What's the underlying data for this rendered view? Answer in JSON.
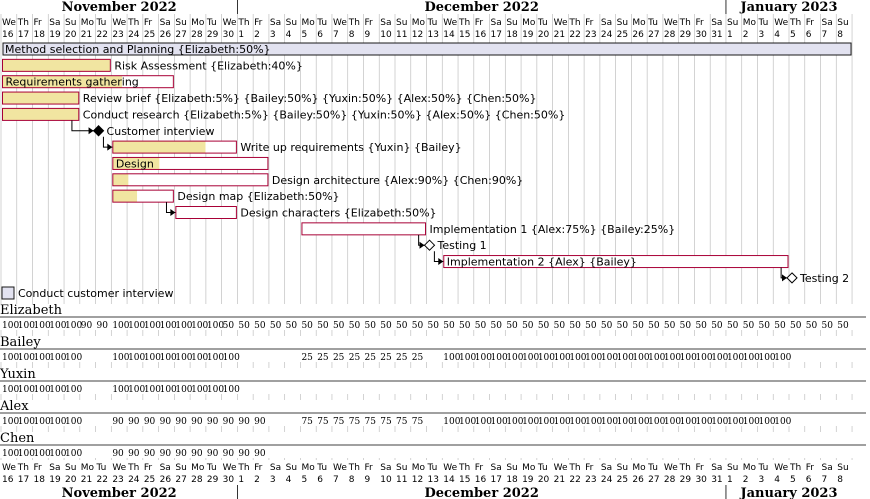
{
  "start_date": "2022-11-16",
  "num_days": 54,
  "colors": {
    "bar_border": "#A80036",
    "bar_fill": "#FFFFFF",
    "progress": "#F1E5A1",
    "group_fill": "#E2E2F0",
    "grid": "#C0C0C0",
    "milestone_done": "#000000"
  },
  "months": [
    {
      "label": "November 2022",
      "start_day": 0,
      "end_day": 14
    },
    {
      "label": "December 2022",
      "start_day": 15,
      "end_day": 45
    },
    {
      "label": "January 2023",
      "start_day": 46,
      "end_day": 53
    }
  ],
  "weekdays": [
    "We",
    "Th",
    "Fr",
    "Sa",
    "Su",
    "Mo",
    "Tu",
    "We",
    "Th",
    "Fr",
    "Sa",
    "Su",
    "Mo",
    "Tu",
    "We",
    "Th",
    "Fr",
    "Sa",
    "Su",
    "Mo",
    "Tu",
    "We",
    "Th",
    "Fr",
    "Sa",
    "Su",
    "Mo",
    "Tu",
    "We",
    "Th",
    "Fr",
    "Sa",
    "Su",
    "Mo",
    "Tu",
    "We",
    "Th",
    "Fr",
    "Sa",
    "Su",
    "Mo",
    "Tu",
    "We",
    "Th",
    "Fr",
    "Sa",
    "Su",
    "Mo",
    "Tu",
    "We",
    "Th",
    "Fr",
    "Sa",
    "Su"
  ],
  "day_numbers": [
    "16",
    "17",
    "18",
    "19",
    "20",
    "21",
    "22",
    "23",
    "24",
    "25",
    "26",
    "27",
    "28",
    "29",
    "30",
    "1",
    "2",
    "3",
    "4",
    "5",
    "6",
    "7",
    "8",
    "9",
    "10",
    "11",
    "12",
    "13",
    "14",
    "15",
    "16",
    "17",
    "18",
    "19",
    "20",
    "21",
    "22",
    "23",
    "24",
    "25",
    "26",
    "27",
    "28",
    "29",
    "30",
    "31",
    "1",
    "2",
    "3",
    "4",
    "5",
    "6",
    "7",
    "8"
  ],
  "tasks": [
    {
      "type": "group",
      "label": "Method selection and Planning {Elizabeth:50%}",
      "start": 0,
      "end": 53
    },
    {
      "type": "task",
      "label": "Risk Assessment {Elizabeth:40%}",
      "start": 0,
      "end": 6,
      "progress": 1.0,
      "label_inside": false
    },
    {
      "type": "task",
      "label": "Requirements gathering",
      "start": 0,
      "end": 10,
      "progress": 0.7,
      "label_inside": true
    },
    {
      "type": "task",
      "label": "Review brief {Elizabeth:5%} {Bailey:50%} {Yuxin:50%} {Alex:50%} {Chen:50%}",
      "start": 0,
      "end": 4,
      "progress": 1.0,
      "label_inside": false
    },
    {
      "type": "task",
      "label": "Conduct research {Elizabeth:5%} {Bailey:50%} {Yuxin:50%} {Alex:50%} {Chen:50%}",
      "start": 0,
      "end": 4,
      "progress": 1.0,
      "label_inside": false
    },
    {
      "type": "milestone",
      "label": "Customer interview",
      "day": 6,
      "done": true
    },
    {
      "type": "task",
      "label": "Write up requirements {Yuxin} {Bailey}",
      "start": 7,
      "end": 14,
      "progress": 0.75,
      "label_inside": false
    },
    {
      "type": "task",
      "label": "Design",
      "start": 7,
      "end": 16,
      "progress": 0.3,
      "label_inside": true
    },
    {
      "type": "task",
      "label": "Design architecture {Alex:90%} {Chen:90%}",
      "start": 7,
      "end": 16,
      "progress": 0.1,
      "label_inside": false
    },
    {
      "type": "task",
      "label": "Design map {Elizabeth:50%}",
      "start": 7,
      "end": 10,
      "progress": 0.4,
      "label_inside": false
    },
    {
      "type": "task",
      "label": "Design characters {Elizabeth:50%}",
      "start": 11,
      "end": 14,
      "progress": 0.0,
      "label_inside": false
    },
    {
      "type": "task",
      "label": "Implementation 1 {Alex:75%} {Bailey:25%}",
      "start": 19,
      "end": 26,
      "progress": 0.0,
      "label_inside": false
    },
    {
      "type": "milestone",
      "label": "Testing 1",
      "day": 27,
      "done": false
    },
    {
      "type": "task",
      "label": "Implementation 2 {Alex} {Bailey}",
      "start": 28,
      "end": 49,
      "progress": 0.0,
      "label_inside": true
    },
    {
      "type": "milestone",
      "label": "Testing 2",
      "day": 50,
      "done": false
    }
  ],
  "dependencies": [
    {
      "from_day": 4,
      "to_row": 5,
      "from_row": 4,
      "kind": "to_milestone"
    },
    {
      "from_day": 6,
      "to_row": 6,
      "from_row": 5,
      "kind": "to_task"
    },
    {
      "from_day": 10,
      "to_row": 10,
      "from_row": 9,
      "kind": "to_task"
    },
    {
      "from_day": 26,
      "to_row": 12,
      "from_row": 11,
      "kind": "to_milestone"
    },
    {
      "from_day": 27,
      "to_row": 13,
      "from_row": 12,
      "kind": "to_task"
    },
    {
      "from_day": 49,
      "to_row": 14,
      "from_row": 13,
      "kind": "to_milestone"
    }
  ],
  "legend": {
    "label": "Conduct customer interview"
  },
  "resources": [
    {
      "name": "Elizabeth",
      "loads": [
        {
          "text": "100",
          "from": 0,
          "to": 4
        },
        {
          "text": "90",
          "from": 5,
          "to": 6
        },
        {
          "text": "100",
          "from": 7,
          "to": 10
        },
        {
          "text": "100",
          "from": 11,
          "to": 12
        },
        {
          "text": "100",
          "from": 13,
          "to": 13
        },
        {
          "text": "50",
          "from": 14,
          "to": 14
        },
        {
          "text": "50",
          "from": 15,
          "to": 53
        }
      ]
    },
    {
      "name": "Bailey",
      "loads": [
        {
          "text": "100",
          "from": 0,
          "to": 4
        },
        {
          "text": "100",
          "from": 7,
          "to": 14
        },
        {
          "text": "25",
          "from": 19,
          "to": 26
        },
        {
          "text": "100",
          "from": 28,
          "to": 49
        }
      ]
    },
    {
      "name": "Yuxin",
      "loads": [
        {
          "text": "100",
          "from": 0,
          "to": 4
        },
        {
          "text": "100",
          "from": 7,
          "to": 14
        }
      ]
    },
    {
      "name": "Alex",
      "loads": [
        {
          "text": "100",
          "from": 0,
          "to": 4
        },
        {
          "text": "90",
          "from": 7,
          "to": 16
        },
        {
          "text": "75",
          "from": 19,
          "to": 26
        },
        {
          "text": "100",
          "from": 28,
          "to": 49
        }
      ]
    },
    {
      "name": "Chen",
      "loads": [
        {
          "text": "100",
          "from": 0,
          "to": 4
        },
        {
          "text": "90",
          "from": 7,
          "to": 16
        }
      ]
    }
  ]
}
